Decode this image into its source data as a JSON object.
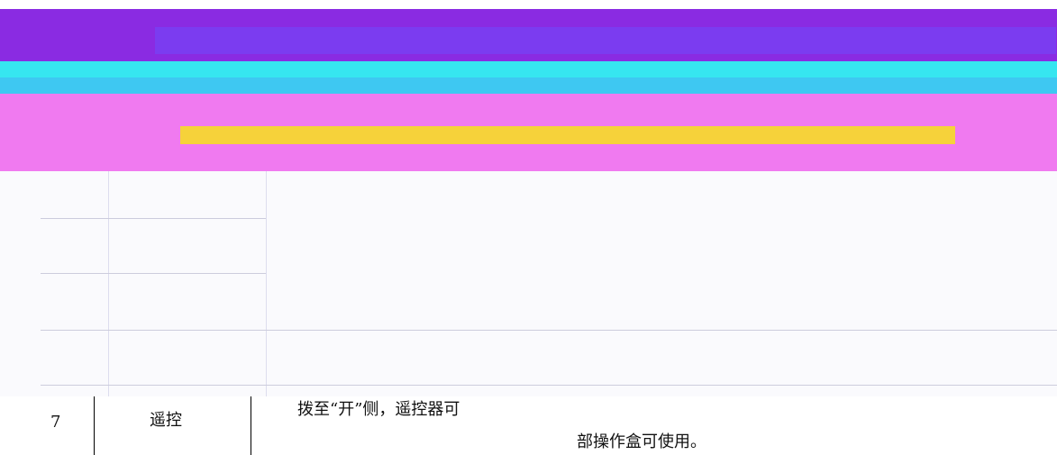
{
  "table": {
    "rows": [
      [
        "7",
        "遥控",
        "拨至“开”侧，遥控器可",
        "部操作盒可使用。"
      ]
    ]
  }
}
